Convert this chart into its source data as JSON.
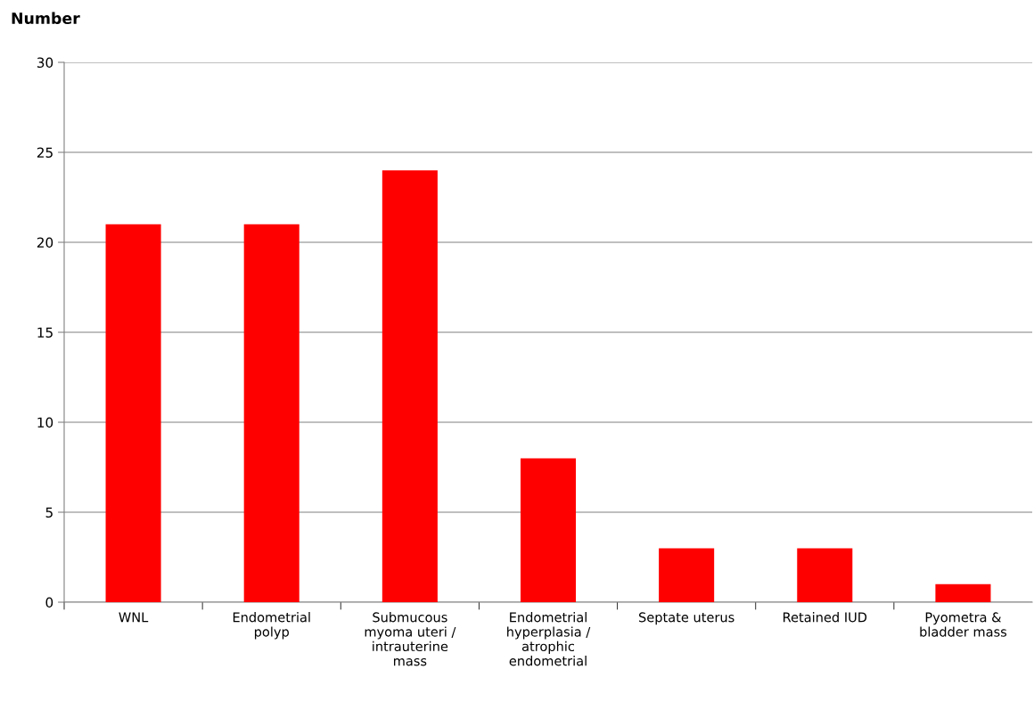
{
  "chart_data": {
    "type": "bar",
    "ylabel": "Number",
    "categories": [
      "WNL",
      "Endometrial\npolyp",
      "Submucous\nmyoma uteri /\nintrauterine\nmass",
      "Endometrial\nhyperplasia /\natrophic\nendometrial",
      "Septate uterus",
      "Retained IUD",
      "Pyometra &\nbladder mass"
    ],
    "values": [
      21,
      21,
      24,
      8,
      3,
      3,
      1
    ],
    "color": "#ff0000",
    "ylim": [
      0,
      30
    ],
    "yticks": [
      0,
      5,
      10,
      15,
      20,
      25,
      30
    ],
    "grid": "y"
  }
}
